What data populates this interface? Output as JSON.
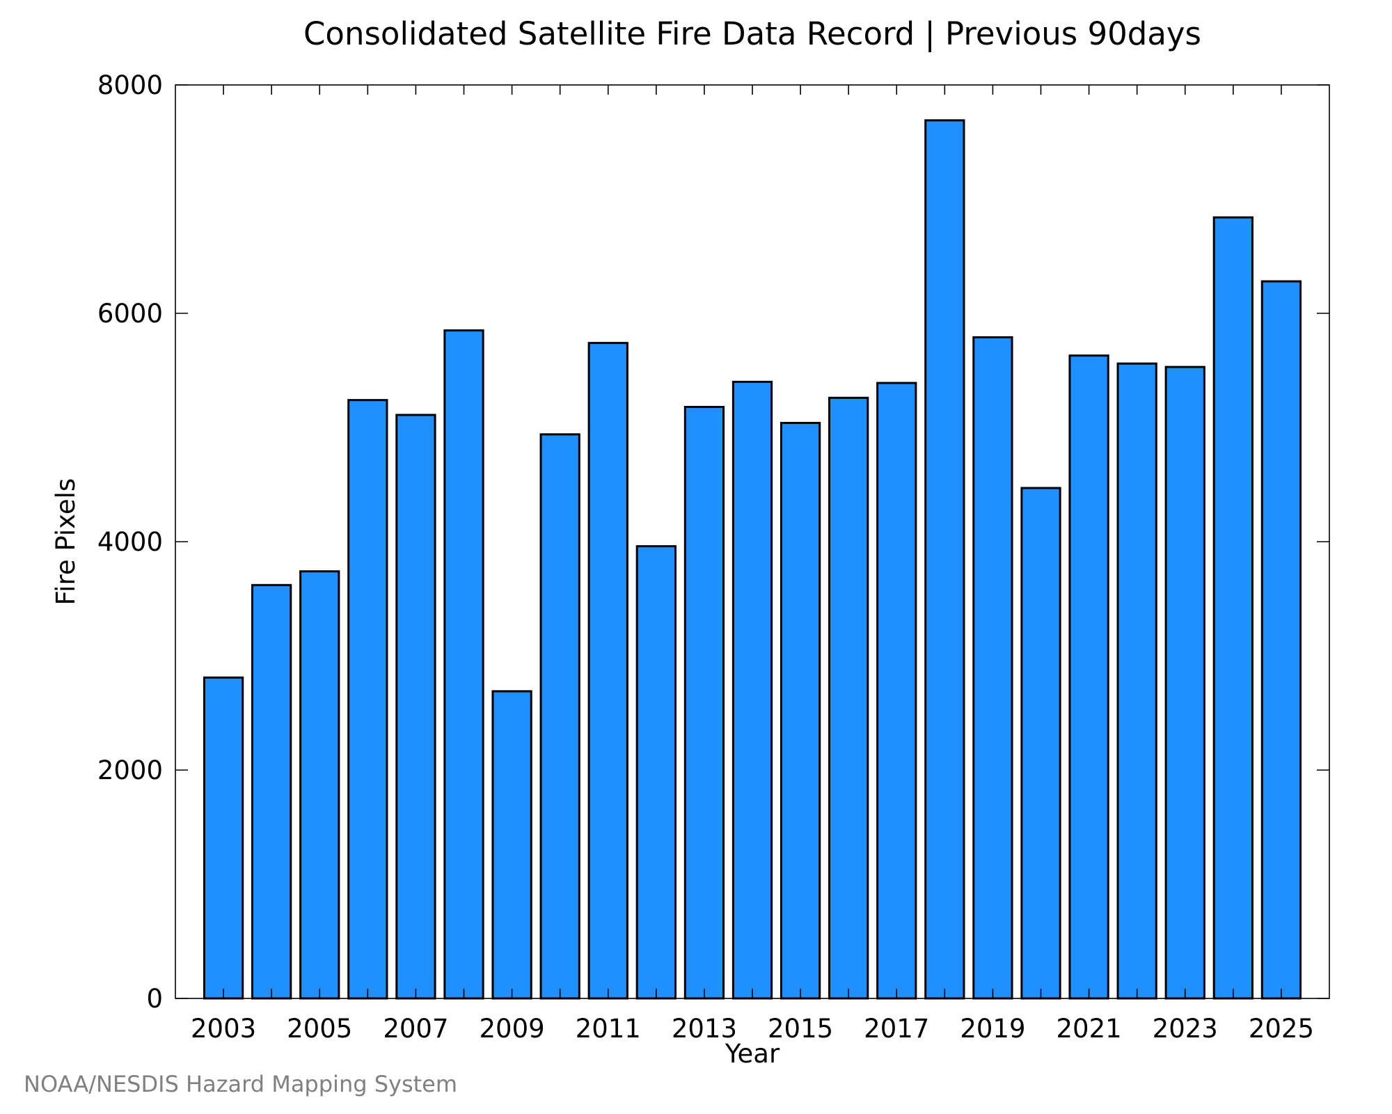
{
  "chart_data": {
    "type": "bar",
    "title": "Consolidated Satellite Fire Data Record | Previous 90days",
    "xlabel": "Year",
    "ylabel": "Fire Pixels",
    "categories": [
      2003,
      2004,
      2005,
      2006,
      2007,
      2008,
      2009,
      2010,
      2011,
      2012,
      2013,
      2014,
      2015,
      2016,
      2017,
      2018,
      2019,
      2020,
      2021,
      2022,
      2023,
      2024,
      2025
    ],
    "values": [
      2810,
      3620,
      3740,
      5240,
      5110,
      5850,
      2690,
      4940,
      5740,
      3960,
      5180,
      5400,
      5040,
      5260,
      5390,
      7690,
      5790,
      4470,
      5630,
      5560,
      5530,
      6840,
      6280
    ],
    "xticks": [
      2003,
      2005,
      2007,
      2009,
      2011,
      2013,
      2015,
      2017,
      2019,
      2021,
      2023,
      2025
    ],
    "yticks": [
      0,
      2000,
      4000,
      6000,
      8000
    ],
    "xlim": [
      2002,
      2026
    ],
    "ylim": [
      0,
      8000
    ],
    "bar_color": "#1e90ff",
    "grid": false,
    "legend": "none"
  },
  "credit": "NOAA/NESDIS Hazard Mapping System"
}
